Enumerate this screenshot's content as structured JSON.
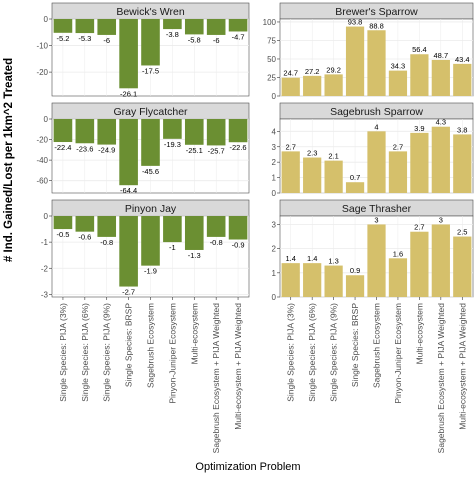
{
  "ylabel": "# Ind. Gained/Lost per 1km^2 Treated",
  "xlabel": "Optimization Problem",
  "colors": {
    "negative": "#6b8f32",
    "positive": "#d5c06b",
    "strip": "#d9d9d9",
    "grid": "#ebebeb"
  },
  "chart_data": {
    "type": "bar",
    "layout": "facet grid 3 rows x 2 columns, free y scales",
    "categories": [
      "Single Species: PIJA (3%)",
      "Single Species: PIJA (6%)",
      "Single Species: PIJA (9%)",
      "Single Species: BRSP",
      "Sagebrush Ecosystem",
      "Pinyon-Juniper Ecosystem",
      "Multi-ecosystem",
      "Sagebrush Ecosystem + PIJA Weighted",
      "Multi-ecosystem + PIJA Weighted"
    ],
    "panels": [
      {
        "name": "Bewick's Wren",
        "values": [
          -5.2,
          -5.3,
          -6,
          -26.1,
          -17.5,
          -3.8,
          -5.8,
          -6,
          -4.7
        ],
        "labels": [
          "-5.2",
          "-5.3",
          "-6",
          "-26.1",
          "-17.5",
          "-3.8",
          "-5.8",
          "-6",
          "-4.7"
        ],
        "ylim": [
          -29,
          0
        ],
        "yticks": [
          0,
          -10,
          -20
        ]
      },
      {
        "name": "Brewer's Sparrow",
        "values": [
          24.7,
          27.2,
          29.2,
          93.8,
          88.8,
          34.3,
          56.4,
          48.7,
          43.4
        ],
        "labels": [
          "24.7",
          "27.2",
          "29.2",
          "93.8",
          "88.8",
          "34.3",
          "56.4",
          "48.7",
          "43.4"
        ],
        "ylim": [
          0,
          104
        ],
        "yticks": [
          0,
          25,
          50,
          75,
          100
        ]
      },
      {
        "name": "Gray Flycatcher",
        "values": [
          -22.4,
          -23.6,
          -24.9,
          -64.4,
          -45.6,
          -19.3,
          -25.1,
          -25.7,
          -22.6
        ],
        "labels": [
          "-22.4",
          "-23.6",
          "-24.9",
          "-64.4",
          "-45.6",
          "-19.3",
          "-25.1",
          "-25.7",
          "-22.6"
        ],
        "ylim": [
          -72,
          0
        ],
        "yticks": [
          0,
          -20,
          -40,
          -60
        ]
      },
      {
        "name": "Sagebrush Sparrow",
        "values": [
          2.7,
          2.3,
          2.1,
          0.7,
          4,
          2.7,
          3.9,
          4.3,
          3.8
        ],
        "labels": [
          "2.7",
          "2.3",
          "2.1",
          "0.7",
          "4",
          "2.7",
          "3.9",
          "4.3",
          "3.8"
        ],
        "ylim": [
          0,
          4.8
        ],
        "yticks": [
          0,
          1,
          2,
          3,
          4
        ]
      },
      {
        "name": "Pinyon Jay",
        "values": [
          -0.5,
          -0.6,
          -0.8,
          -2.7,
          -1.9,
          -1,
          -1.3,
          -0.8,
          -0.9
        ],
        "labels": [
          "-0.5",
          "-0.6",
          "-0.8",
          "-2.7",
          "-1.9",
          "-1",
          "-1.3",
          "-0.8",
          "-0.9"
        ],
        "ylim": [
          -3.1,
          0
        ],
        "yticks": [
          0,
          -1,
          -2,
          -3
        ]
      },
      {
        "name": "Sage Thrasher",
        "values": [
          1.4,
          1.4,
          1.3,
          0.9,
          3,
          1.6,
          2.7,
          3,
          2.5
        ],
        "labels": [
          "1.4",
          "1.4",
          "1.3",
          "0.9",
          "3",
          "1.6",
          "2.7",
          "3",
          "2.5"
        ],
        "ylim": [
          0,
          3.35
        ],
        "yticks": [
          0,
          1,
          2,
          3
        ]
      }
    ]
  }
}
